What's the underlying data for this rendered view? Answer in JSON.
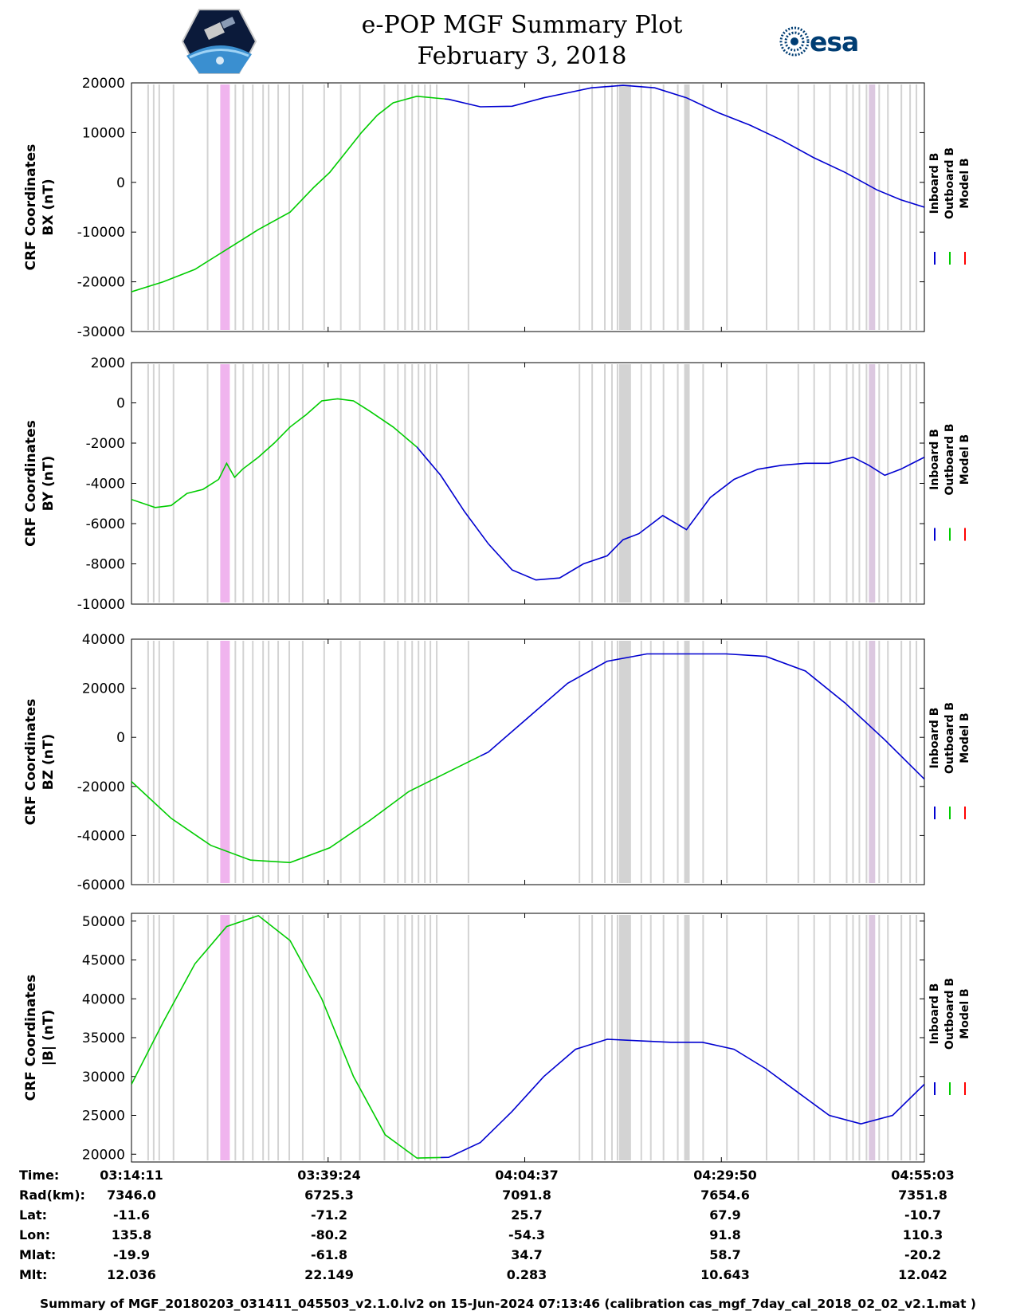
{
  "title": "e-POP MGF Summary Plot",
  "date": "February 3, 2018",
  "logo_right_text": "esa",
  "colors": {
    "inboard": "#0000d0",
    "outboard": "#00cc00",
    "model": "#ff0000",
    "gap": "#d3d3d3",
    "highlight": "#f0b4ee",
    "highlight_light": "#dcc8e0"
  },
  "legend": [
    "Inboard B",
    "Outboard B",
    "Model B"
  ],
  "chart_data": [
    {
      "type": "line",
      "ylabel": [
        "CRF Coordinates",
        "BX (nT)"
      ],
      "ylim": [
        -30000,
        20000
      ],
      "yticks": [
        20000,
        10000,
        0,
        -10000,
        -20000,
        -30000
      ],
      "x": [
        0,
        4,
        8,
        10,
        13,
        16,
        20,
        23,
        25,
        27,
        29,
        31,
        33,
        36,
        40,
        44,
        48,
        52,
        55,
        58,
        62,
        66,
        70,
        74,
        78,
        82,
        86,
        90,
        94,
        97,
        100
      ],
      "series": [
        {
          "name": "Outboard B",
          "x_range": [
            0,
            39.5
          ],
          "values": [
            -22000,
            -20000,
            -17500,
            -15500,
            -12500,
            -9500,
            -6000,
            -1000,
            2000,
            6000,
            10000,
            13500,
            16000,
            17300,
            16700,
            15200,
            15300,
            17000,
            18000,
            19000,
            19500,
            19000,
            17000,
            14000,
            11500,
            8500,
            5000,
            2000,
            -1500,
            -3500,
            -5000
          ]
        },
        {
          "name": "Inboard B",
          "x_range": [
            39.5,
            100
          ],
          "values": [
            -22000,
            -20000,
            -17500,
            -15500,
            -12500,
            -9500,
            -6000,
            -1000,
            2000,
            6000,
            10000,
            13500,
            16000,
            17300,
            16700,
            15200,
            15300,
            17000,
            18000,
            19000,
            19500,
            19000,
            17000,
            14000,
            11500,
            8500,
            5000,
            2000,
            -1500,
            -3500,
            -5000
          ]
        }
      ]
    },
    {
      "type": "line",
      "ylabel": [
        "CRF Coordinates",
        "BY (nT)"
      ],
      "ylim": [
        -10000,
        2000
      ],
      "yticks": [
        2000,
        0,
        -2000,
        -4000,
        -6000,
        -8000,
        -10000
      ],
      "x": [
        0,
        3,
        5,
        7,
        9,
        11,
        12,
        13,
        14,
        16,
        18,
        20,
        22,
        24,
        26,
        28,
        30,
        33,
        36,
        39,
        42,
        45,
        48,
        51,
        54,
        57,
        60,
        62,
        64,
        67,
        70,
        73,
        76,
        79,
        82,
        85,
        88,
        91,
        93,
        95,
        97,
        100
      ],
      "series": [
        {
          "name": "Outboard B",
          "x_range": [
            0,
            36
          ],
          "values": [
            -4800,
            -5200,
            -5100,
            -4500,
            -4300,
            -3800,
            -3000,
            -3700,
            -3300,
            -2700,
            -2000,
            -1200,
            -600,
            100,
            200,
            100,
            -400,
            -1200,
            -2200,
            -3600,
            -5400,
            -7000,
            -8300,
            -8800,
            -8700,
            -8000,
            -7600,
            -6800,
            -6500,
            -5600,
            -6300,
            -4700,
            -3800,
            -3300,
            -3100,
            -3000,
            -3000,
            -2700,
            -3100,
            -3600,
            -3300,
            -2700
          ]
        },
        {
          "name": "Inboard B",
          "x_range": [
            36,
            100
          ],
          "values": [
            -4800,
            -5200,
            -5100,
            -4500,
            -4300,
            -3800,
            -3000,
            -3700,
            -3300,
            -2700,
            -2000,
            -1200,
            -600,
            100,
            200,
            100,
            -400,
            -1200,
            -2200,
            -3600,
            -5400,
            -7000,
            -8300,
            -8800,
            -8700,
            -8000,
            -7600,
            -6800,
            -6500,
            -5600,
            -6300,
            -4700,
            -3800,
            -3300,
            -3100,
            -3000,
            -3000,
            -2700,
            -3100,
            -3600,
            -3300,
            -2700
          ]
        }
      ]
    },
    {
      "type": "line",
      "ylabel": [
        "CRF Coordinates",
        "BZ (nT)"
      ],
      "ylim": [
        -60000,
        40000
      ],
      "yticks": [
        40000,
        20000,
        0,
        -20000,
        -40000,
        -60000
      ],
      "x": [
        0,
        5,
        10,
        15,
        20,
        25,
        30,
        35,
        40,
        45,
        50,
        55,
        60,
        65,
        70,
        75,
        80,
        85,
        90,
        95,
        100
      ],
      "series": [
        {
          "name": "Outboard B",
          "x_range": [
            0,
            44
          ],
          "values": [
            -18000,
            -33000,
            -44000,
            -50000,
            -51000,
            -45000,
            -34000,
            -22000,
            -14000,
            -6000,
            8000,
            22000,
            31000,
            34000,
            34000,
            34000,
            33000,
            27000,
            14000,
            -1000,
            -17000
          ]
        },
        {
          "name": "Inboard B",
          "x_range": [
            44,
            100
          ],
          "values": [
            -18000,
            -33000,
            -44000,
            -50000,
            -51000,
            -45000,
            -34000,
            -22000,
            -14000,
            -6000,
            8000,
            22000,
            31000,
            34000,
            34000,
            34000,
            33000,
            27000,
            14000,
            -1000,
            -17000
          ]
        }
      ]
    },
    {
      "type": "line",
      "ylabel": [
        "CRF Coordinates",
        "|B| (nT)"
      ],
      "ylim": [
        19000,
        51000
      ],
      "yticks": [
        50000,
        45000,
        40000,
        35000,
        30000,
        25000,
        20000
      ],
      "x": [
        0,
        4,
        8,
        12,
        16,
        20,
        24,
        28,
        32,
        36,
        40,
        44,
        48,
        52,
        56,
        60,
        64,
        68,
        72,
        76,
        80,
        84,
        88,
        92,
        96,
        100
      ],
      "series": [
        {
          "name": "Outboard B",
          "x_range": [
            0,
            39
          ],
          "values": [
            29000,
            37000,
            44500,
            49300,
            50700,
            47500,
            40000,
            30000,
            22500,
            19500,
            19600,
            21500,
            25500,
            30000,
            33500,
            34800,
            34600,
            34400,
            34400,
            33500,
            31000,
            28000,
            25000,
            23900,
            25000,
            29000
          ]
        },
        {
          "name": "Inboard B",
          "x_range": [
            39,
            100
          ],
          "values": [
            29000,
            37000,
            44500,
            49300,
            50700,
            47500,
            40000,
            30000,
            22500,
            19500,
            19600,
            21500,
            25500,
            30000,
            33500,
            34800,
            34600,
            34400,
            34400,
            33500,
            31000,
            28000,
            25000,
            23900,
            25000,
            29000
          ]
        }
      ]
    }
  ],
  "gap_positions_pct": [
    2,
    2.7,
    3.4,
    5.2,
    9.5,
    11.2,
    13,
    14,
    15.2,
    16.5,
    17.2,
    18.4,
    19.8,
    21.5,
    24.2,
    26.3,
    28.7,
    31.8,
    33.5,
    34.4,
    35.3,
    36.1,
    36.9,
    37.6,
    38.4,
    42.4,
    56.4,
    58,
    59.6,
    60.5,
    61.2,
    62.2,
    64.2,
    65.4,
    67,
    68.8,
    70.2,
    72,
    75,
    80,
    84,
    86,
    88,
    90.1,
    90.9,
    91.7,
    92.6,
    94.2,
    95.3,
    97,
    98.1,
    98.9
  ],
  "wide_gaps_pct": [
    [
      61.5,
      63
    ],
    [
      69.7,
      70.4
    ]
  ],
  "highlight_pct": [
    11.2,
    12.4
  ],
  "highlight_light_pct": [
    93,
    93.8
  ],
  "info": {
    "labels": [
      "Time:",
      "Rad(km):",
      "Lat:",
      "Lon:",
      "Mlat:",
      "Mlt:"
    ],
    "columns": [
      [
        "03:14:11",
        "7346.0",
        "-11.6",
        "135.8",
        "-19.9",
        "12.036"
      ],
      [
        "03:39:24",
        "6725.3",
        "-71.2",
        "-80.2",
        "-61.8",
        "22.149"
      ],
      [
        "04:04:37",
        "7091.8",
        "25.7",
        "-54.3",
        "34.7",
        "0.283"
      ],
      [
        "04:29:50",
        "7654.6",
        "67.9",
        "91.8",
        "58.7",
        "10.643"
      ],
      [
        "04:55:03",
        "7351.8",
        "-10.7",
        "110.3",
        "-20.2",
        "12.042"
      ]
    ]
  },
  "footer": "Summary of MGF_20180203_031411_045503_v2.1.0.lv2 on 15-Jun-2024 07:13:46 (calibration cas_mgf_7day_cal_2018_02_02_v2.1.mat )"
}
